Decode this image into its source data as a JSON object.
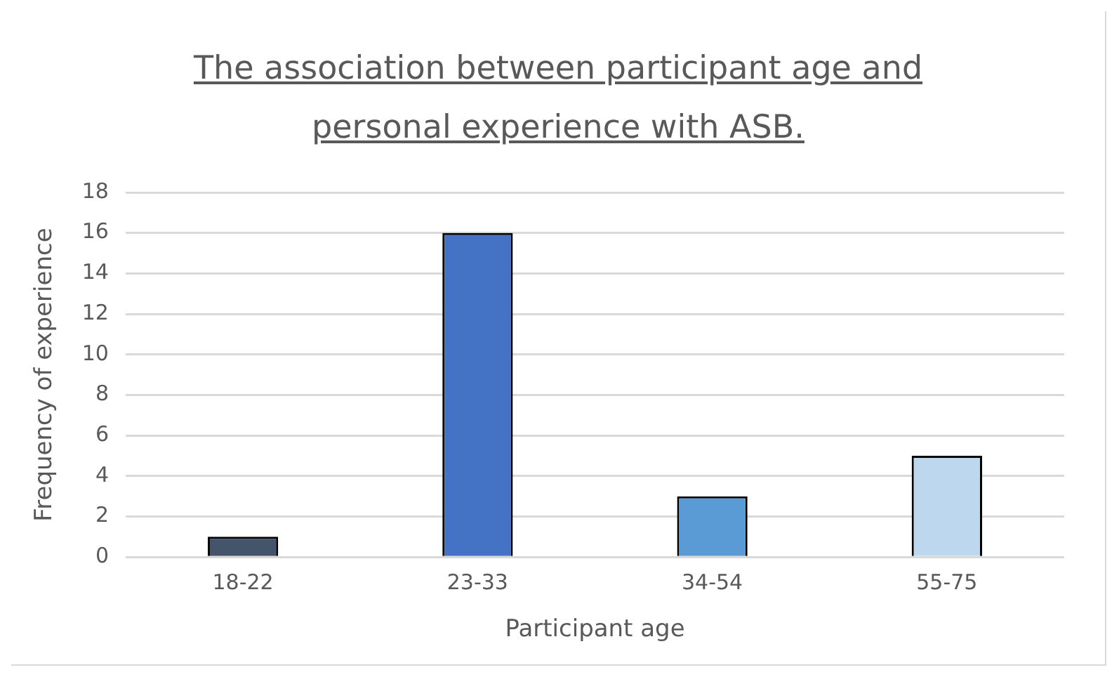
{
  "chart_data": {
    "type": "bar",
    "title": "The association between participant age and personal experience with ASB.",
    "xlabel": "Participant age",
    "ylabel": "Frequency of experience",
    "categories": [
      "18-22",
      "23-33",
      "34-54",
      "55-75"
    ],
    "values": [
      1,
      16,
      3,
      5
    ],
    "colors": [
      "#44546a",
      "#4472c4",
      "#5b9bd5",
      "#bdd7ee"
    ],
    "ylim": [
      0,
      18
    ],
    "yticks": [
      0,
      2,
      4,
      6,
      8,
      10,
      12,
      14,
      16,
      18
    ],
    "grid": "y",
    "legend": false
  }
}
